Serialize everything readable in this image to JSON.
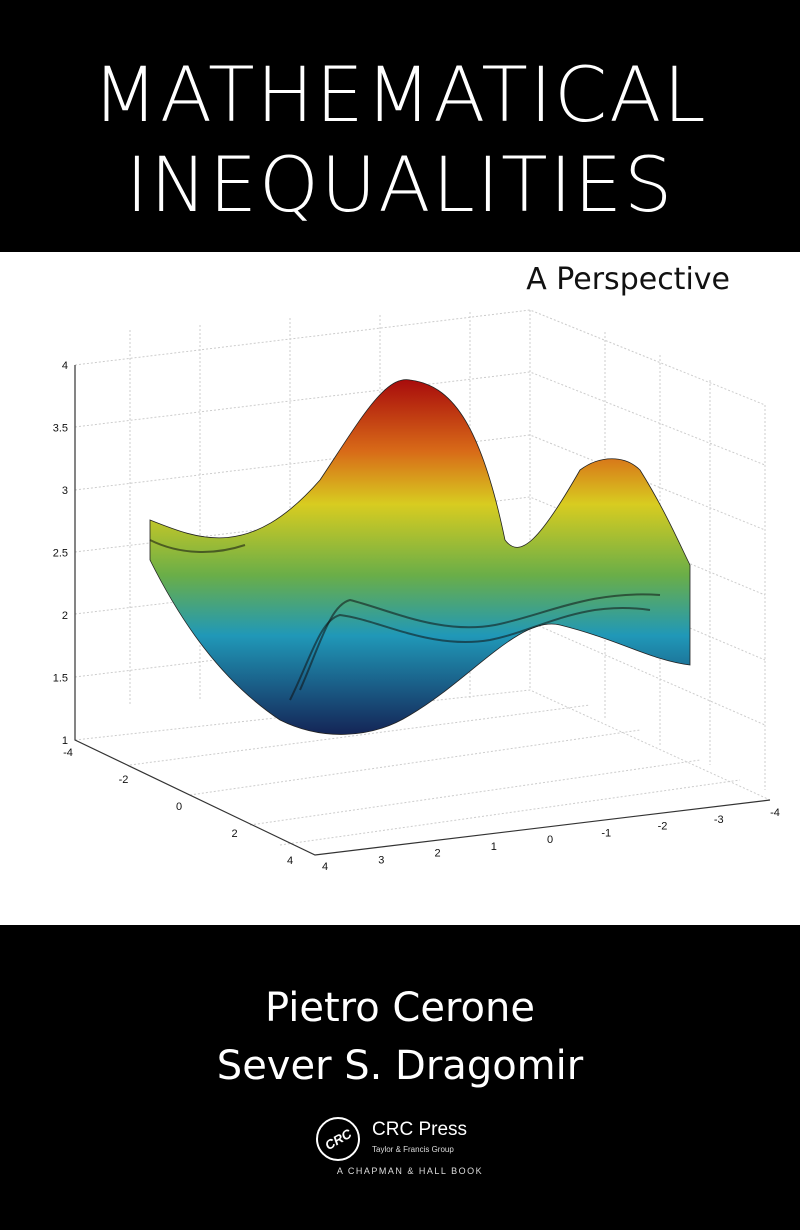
{
  "cover": {
    "title_line1": "MATHEMATICAL",
    "title_line2": "INEQUALITIES",
    "subtitle": "A Perspective",
    "authors": [
      "Pietro Cerone",
      "Sever S. Dragomir"
    ],
    "publisher": {
      "name": "CRC Press",
      "group": "Taylor & Francis Group",
      "imprint": "A CHAPMAN & HALL BOOK",
      "logo_text": "CRC"
    },
    "colors": {
      "band": "#000000",
      "background": "#ffffff"
    }
  },
  "plot": {
    "type": "3d-surface",
    "z_ticks": [
      "1",
      "1.5",
      "2",
      "2.5",
      "3",
      "3.5",
      "4"
    ],
    "left_axis_ticks": [
      "-4",
      "-2",
      "0",
      "2",
      "4"
    ],
    "right_axis_ticks": [
      "4",
      "3",
      "2",
      "1",
      "0",
      "-1",
      "-2",
      "-3",
      "-4"
    ],
    "colormap": [
      "#b01010",
      "#e0d020",
      "#70b040",
      "#20a0c0",
      "#182a70"
    ]
  }
}
